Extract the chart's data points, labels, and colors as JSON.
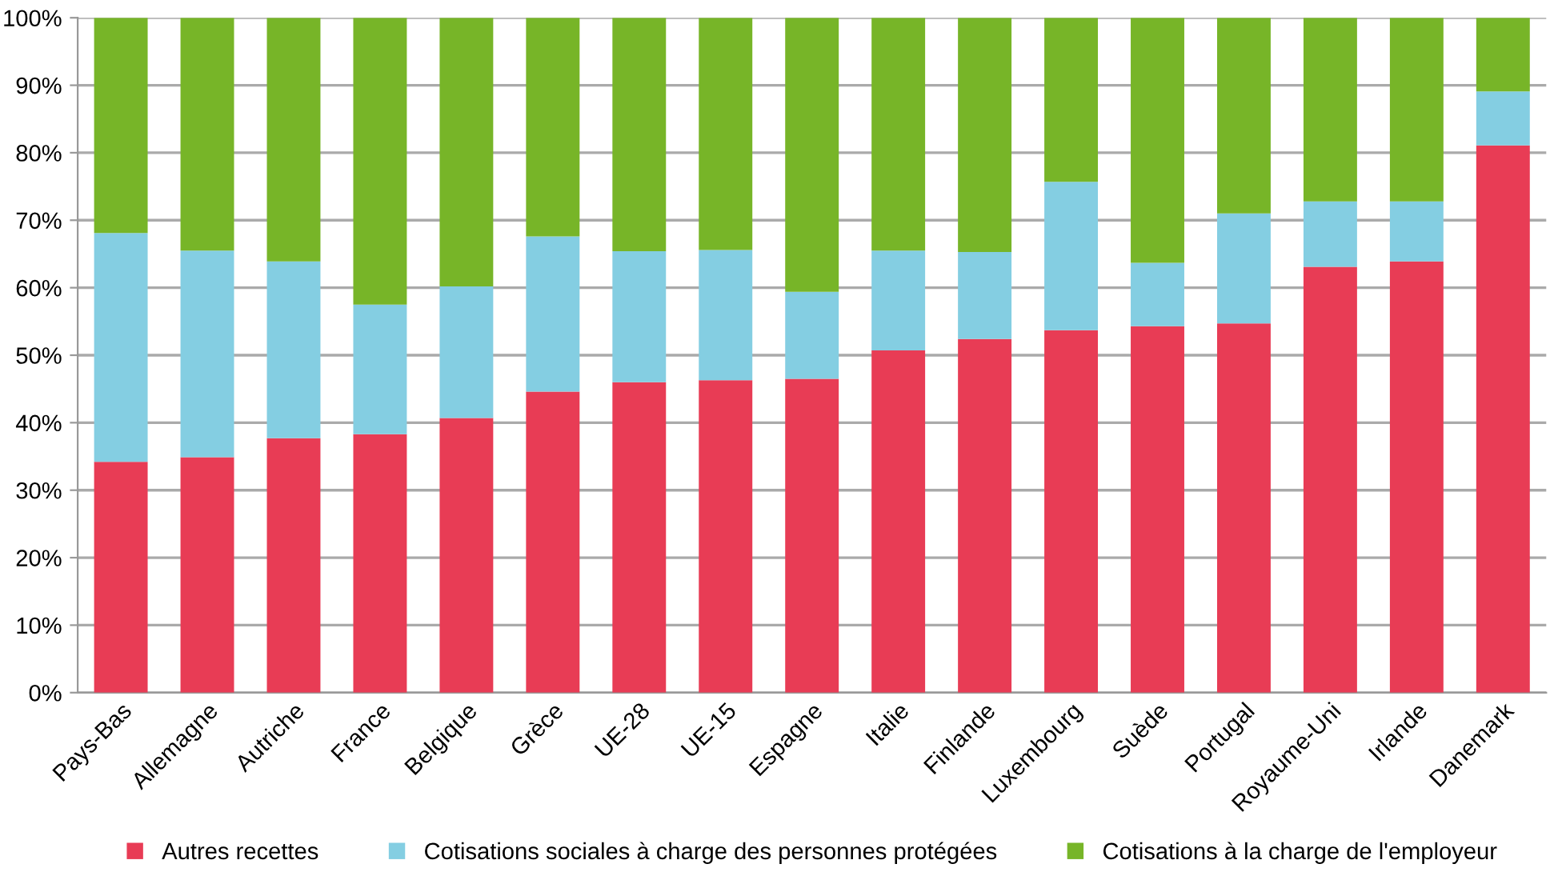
{
  "chart_data": {
    "type": "bar",
    "stacked": true,
    "categories": [
      "Pays-Bas",
      "Allemagne",
      "Autriche",
      "France",
      "Belgique",
      "Grèce",
      "UE-28",
      "UE-15",
      "Espagne",
      "Italie",
      "Finlande",
      "Luxembourg",
      "Suède",
      "Portugal",
      "Royaume-Uni",
      "Irlande",
      "Danemark"
    ],
    "series": [
      {
        "name": "Autres recettes",
        "color": "#e83c55",
        "values": [
          34.2,
          34.9,
          37.7,
          38.3,
          40.7,
          44.6,
          46.0,
          46.3,
          46.5,
          50.7,
          52.4,
          53.7,
          54.3,
          54.7,
          63.1,
          63.9,
          81.1
        ]
      },
      {
        "name": "Cotisations sociales à charge des personnes protégées",
        "color": "#84cee2",
        "values": [
          33.9,
          30.6,
          26.2,
          19.2,
          19.5,
          23.0,
          19.4,
          19.3,
          12.9,
          14.8,
          12.9,
          22.0,
          9.4,
          16.3,
          9.7,
          8.9,
          8.0
        ]
      },
      {
        "name": "Cotisations à la charge de l'employeur",
        "color": "#77b528",
        "values": [
          31.9,
          34.5,
          36.1,
          42.5,
          39.8,
          32.4,
          34.6,
          34.4,
          40.6,
          34.5,
          34.7,
          24.3,
          36.3,
          29.0,
          27.2,
          27.2,
          10.9
        ]
      }
    ],
    "ylim": [
      0,
      100
    ],
    "yticks": [
      {
        "value": 0,
        "label": "0%"
      },
      {
        "value": 10,
        "label": "10%"
      },
      {
        "value": 20,
        "label": "20%"
      },
      {
        "value": 30,
        "label": "30%"
      },
      {
        "value": 40,
        "label": "40%"
      },
      {
        "value": 50,
        "label": "50%"
      },
      {
        "value": 60,
        "label": "60%"
      },
      {
        "value": 70,
        "label": "70%"
      },
      {
        "value": 80,
        "label": "80%"
      },
      {
        "value": 90,
        "label": "90%"
      },
      {
        "value": 100,
        "label": "100%"
      }
    ],
    "grid": "y",
    "legend": "bottom"
  }
}
